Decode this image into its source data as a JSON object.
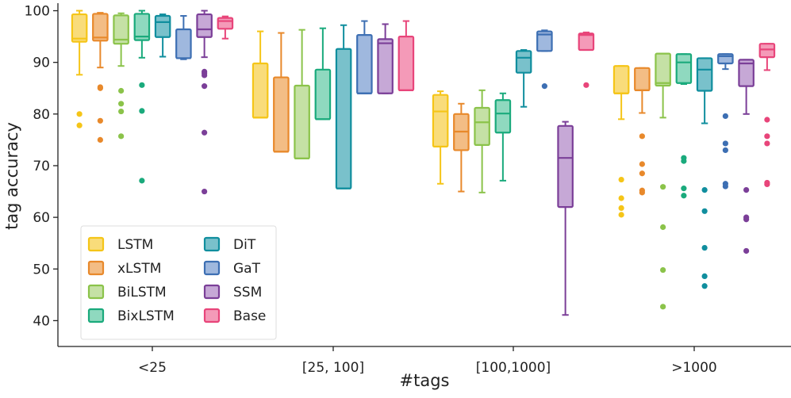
{
  "chart_data": {
    "type": "box",
    "xlabel": "#tags",
    "ylabel": "tag accuracy",
    "ylim": [
      35,
      101
    ],
    "yticks": [
      40,
      50,
      60,
      70,
      80,
      90,
      100
    ],
    "categories": [
      "<25",
      "[25, 100]",
      "[100,1000]",
      ">1000"
    ],
    "legend_position": "bottom-left",
    "series": [
      {
        "name": "LSTM",
        "color": "#f5c518",
        "fill": "#f9dc7a",
        "boxes": [
          {
            "whislo": 87.6,
            "q1": 94.0,
            "median": 94.6,
            "q3": 99.3,
            "whishi": 100.0,
            "fliers": [
              80.0,
              77.8
            ]
          },
          {
            "whislo": 79.3,
            "q1": 79.3,
            "median": 79.3,
            "q3": 89.8,
            "whishi": 96.0,
            "fliers": []
          },
          {
            "whislo": 66.5,
            "q1": 73.7,
            "median": 80.5,
            "q3": 83.7,
            "whishi": 84.4,
            "fliers": []
          },
          {
            "whislo": 79.0,
            "q1": 84.0,
            "median": 84.0,
            "q3": 89.3,
            "whishi": 89.3,
            "fliers": [
              67.3,
              63.7,
              61.8,
              60.5
            ]
          }
        ]
      },
      {
        "name": "xLSTM",
        "color": "#e8892b",
        "fill": "#f3bd85",
        "boxes": [
          {
            "whislo": 89.0,
            "q1": 94.2,
            "median": 94.8,
            "q3": 99.4,
            "whishi": 99.6,
            "fliers": [
              85.2,
              85.0,
              78.7,
              75.0
            ]
          },
          {
            "whislo": 72.7,
            "q1": 72.7,
            "median": 72.7,
            "q3": 87.1,
            "whishi": 95.7,
            "fliers": []
          },
          {
            "whislo": 65.0,
            "q1": 73.0,
            "median": 76.6,
            "q3": 80.0,
            "whishi": 82.0,
            "fliers": []
          },
          {
            "whislo": 80.2,
            "q1": 84.6,
            "median": 84.6,
            "q3": 88.9,
            "whishi": 88.9,
            "fliers": [
              75.7,
              70.3,
              68.5,
              65.2,
              64.8
            ]
          }
        ]
      },
      {
        "name": "BiLSTM",
        "color": "#8bc34a",
        "fill": "#c5e1a5",
        "boxes": [
          {
            "whislo": 89.3,
            "q1": 93.6,
            "median": 94.4,
            "q3": 99.1,
            "whishi": 99.5,
            "fliers": [
              84.5,
              82.0,
              80.5,
              75.7
            ]
          },
          {
            "whislo": 71.4,
            "q1": 71.4,
            "median": 71.4,
            "q3": 85.5,
            "whishi": 96.3,
            "fliers": []
          },
          {
            "whislo": 64.8,
            "q1": 74.0,
            "median": 78.4,
            "q3": 81.2,
            "whishi": 84.6,
            "fliers": []
          },
          {
            "whislo": 79.3,
            "q1": 85.5,
            "median": 86.0,
            "q3": 91.7,
            "whishi": 91.7,
            "fliers": [
              65.9,
              58.1,
              49.8,
              42.7
            ]
          }
        ]
      },
      {
        "name": "BixLSTM",
        "color": "#1aaa7c",
        "fill": "#8fd9bf",
        "boxes": [
          {
            "whislo": 90.9,
            "q1": 94.3,
            "median": 95.0,
            "q3": 99.4,
            "whishi": 100.0,
            "fliers": [
              85.6,
              80.6,
              67.1
            ]
          },
          {
            "whislo": 79.0,
            "q1": 79.0,
            "median": 79.0,
            "q3": 88.6,
            "whishi": 96.6,
            "fliers": []
          },
          {
            "whislo": 67.1,
            "q1": 76.4,
            "median": 80.1,
            "q3": 82.7,
            "whishi": 84.0,
            "fliers": []
          },
          {
            "whislo": 85.8,
            "q1": 86.0,
            "median": 90.0,
            "q3": 91.6,
            "whishi": 91.6,
            "fliers": [
              71.5,
              70.9,
              65.6,
              64.2
            ]
          }
        ]
      },
      {
        "name": "DiT",
        "color": "#108e9e",
        "fill": "#79c1cb",
        "boxes": [
          {
            "whislo": 91.1,
            "q1": 94.9,
            "median": 97.8,
            "q3": 99.0,
            "whishi": 99.3,
            "fliers": []
          },
          {
            "whislo": 65.6,
            "q1": 65.6,
            "median": 65.6,
            "q3": 92.6,
            "whishi": 97.2,
            "fliers": []
          },
          {
            "whislo": 81.4,
            "q1": 88.0,
            "median": 90.9,
            "q3": 92.2,
            "whishi": 92.4,
            "fliers": []
          },
          {
            "whislo": 78.2,
            "q1": 84.5,
            "median": 88.6,
            "q3": 90.8,
            "whishi": 90.8,
            "fliers": [
              65.3,
              61.2,
              54.1,
              48.6,
              46.7
            ]
          }
        ]
      },
      {
        "name": "GaT",
        "color": "#3d6fb3",
        "fill": "#9fb8de",
        "boxes": [
          {
            "whislo": 90.6,
            "q1": 90.8,
            "median": 90.8,
            "q3": 96.4,
            "whishi": 99.0,
            "fliers": []
          },
          {
            "whislo": 84.0,
            "q1": 84.0,
            "median": 84.0,
            "q3": 95.3,
            "whishi": 98.0,
            "fliers": []
          },
          {
            "whislo": 92.2,
            "q1": 92.2,
            "median": 95.4,
            "q3": 96.0,
            "whishi": 96.2,
            "fliers": [
              85.4
            ]
          },
          {
            "whislo": 88.7,
            "q1": 89.8,
            "median": 91.2,
            "q3": 91.6,
            "whishi": 91.6,
            "fliers": [
              79.6,
              74.3,
              73.0,
              66.5,
              66.0
            ]
          }
        ]
      },
      {
        "name": "SSM",
        "color": "#7b3f98",
        "fill": "#c6a8d6",
        "boxes": [
          {
            "whislo": 91.0,
            "q1": 94.9,
            "median": 96.4,
            "q3": 99.3,
            "whishi": 100.0,
            "fliers": [
              88.2,
              87.9,
              87.5,
              85.4,
              76.4,
              65.0
            ]
          },
          {
            "whislo": 84.0,
            "q1": 84.0,
            "median": 93.7,
            "q3": 94.5,
            "whishi": 97.4,
            "fliers": []
          },
          {
            "whislo": 41.1,
            "q1": 62.0,
            "median": 71.5,
            "q3": 77.7,
            "whishi": 78.5,
            "fliers": []
          },
          {
            "whislo": 80.0,
            "q1": 85.4,
            "median": 89.8,
            "q3": 90.5,
            "whishi": 90.5,
            "fliers": [
              65.3,
              60.0,
              59.6,
              53.5
            ]
          }
        ]
      },
      {
        "name": "Base",
        "color": "#e8457a",
        "fill": "#f49ab8",
        "boxes": [
          {
            "whislo": 94.6,
            "q1": 96.5,
            "median": 98.0,
            "q3": 98.6,
            "whishi": 98.9,
            "fliers": []
          },
          {
            "whislo": 84.6,
            "q1": 84.6,
            "median": 84.6,
            "q3": 95.0,
            "whishi": 98.0,
            "fliers": []
          },
          {
            "whislo": 92.4,
            "q1": 92.4,
            "median": 95.3,
            "q3": 95.6,
            "whishi": 95.8,
            "fliers": [
              85.6
            ]
          },
          {
            "whislo": 88.5,
            "q1": 91.0,
            "median": 92.5,
            "q3": 93.6,
            "whishi": 93.6,
            "fliers": [
              78.9,
              75.7,
              74.3,
              66.7,
              66.4
            ]
          }
        ]
      }
    ]
  }
}
